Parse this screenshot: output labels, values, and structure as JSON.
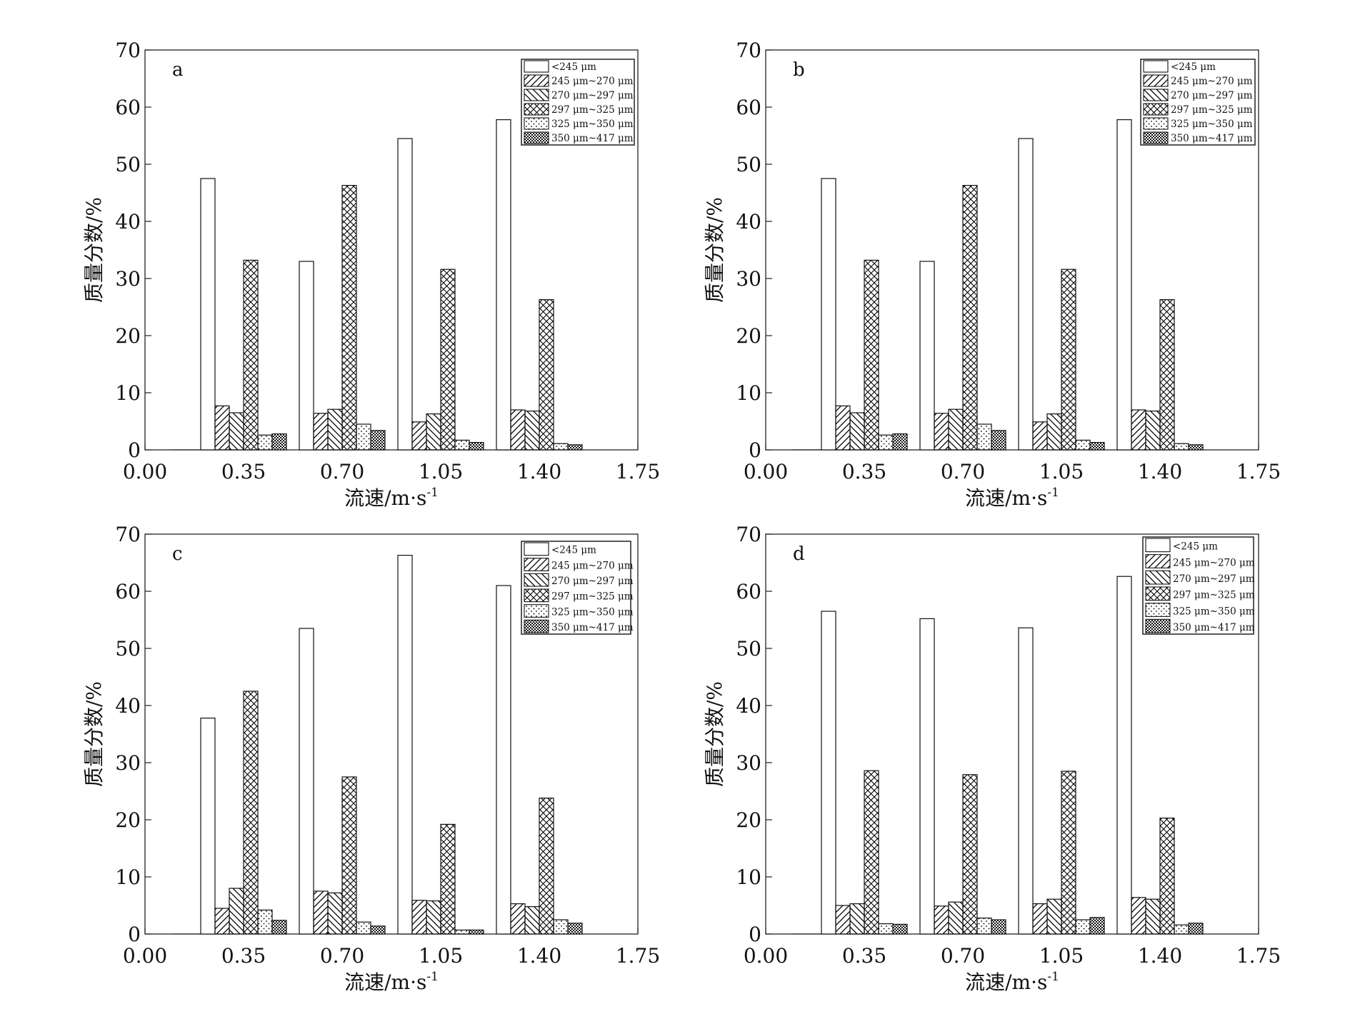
{
  "chart_data": [
    {
      "type": "bar",
      "panel_label": "a",
      "xlabel": "流速/m·s",
      "xlabel_sup": "-1",
      "ylabel": "质量分数/%",
      "xlim": [
        0,
        1.75
      ],
      "ylim": [
        0,
        70
      ],
      "xticks": [
        "0.00",
        "0.35",
        "0.70",
        "1.05",
        "1.40",
        "1.75"
      ],
      "yticks": [
        "0",
        "10",
        "20",
        "30",
        "40",
        "50",
        "60",
        "70"
      ],
      "categories": [
        "0.35",
        "0.70",
        "1.05",
        "1.40"
      ],
      "legend_position": "top-right",
      "series": [
        {
          "name": "<245 μm",
          "pattern": "blank",
          "values": [
            47.5,
            33.0,
            54.5,
            57.8
          ]
        },
        {
          "name": "245 μm~270 μm",
          "pattern": "hatch-forward",
          "values": [
            7.7,
            6.4,
            4.9,
            7.0
          ]
        },
        {
          "name": "270 μm~297 μm",
          "pattern": "hatch-back",
          "values": [
            6.5,
            7.1,
            6.3,
            6.8
          ]
        },
        {
          "name": "297 μm~325 μm",
          "pattern": "crosshatch",
          "values": [
            33.2,
            46.3,
            31.6,
            26.3
          ]
        },
        {
          "name": "325 μm~350 μm",
          "pattern": "dots",
          "values": [
            2.6,
            4.5,
            1.7,
            1.1
          ]
        },
        {
          "name": "350 μm~417 μm",
          "pattern": "dense-check",
          "values": [
            2.8,
            3.4,
            1.3,
            0.9
          ]
        }
      ]
    },
    {
      "type": "bar",
      "panel_label": "b",
      "xlabel": "流速/m·s",
      "xlabel_sup": "-1",
      "ylabel": "质量分数/%",
      "xlim": [
        0,
        1.75
      ],
      "ylim": [
        0,
        70
      ],
      "xticks": [
        "0.00",
        "0.35",
        "0.70",
        "1.05",
        "1.40",
        "1.75"
      ],
      "yticks": [
        "0",
        "10",
        "20",
        "30",
        "40",
        "50",
        "60",
        "70"
      ],
      "categories": [
        "0.35",
        "0.70",
        "1.05",
        "1.40"
      ],
      "legend_position": "top-right",
      "series": [
        {
          "name": "<245 μm",
          "pattern": "blank",
          "values": [
            47.5,
            33.0,
            54.5,
            57.8
          ]
        },
        {
          "name": "245 μm~270 μm",
          "pattern": "hatch-forward",
          "values": [
            7.7,
            6.4,
            4.9,
            7.0
          ]
        },
        {
          "name": "270 μm~297 μm",
          "pattern": "hatch-back",
          "values": [
            6.5,
            7.1,
            6.3,
            6.8
          ]
        },
        {
          "name": "297 μm~325 μm",
          "pattern": "crosshatch",
          "values": [
            33.2,
            46.3,
            31.6,
            26.3
          ]
        },
        {
          "name": "325 μm~350 μm",
          "pattern": "dots",
          "values": [
            2.6,
            4.5,
            1.7,
            1.1
          ]
        },
        {
          "name": "350 μm~417 μm",
          "pattern": "dense-check",
          "values": [
            2.8,
            3.4,
            1.3,
            0.9
          ]
        }
      ]
    },
    {
      "type": "bar",
      "panel_label": "c",
      "xlabel": "流速/m·s",
      "xlabel_sup": "-1",
      "ylabel": "质量分数/%",
      "xlim": [
        0,
        1.75
      ],
      "ylim": [
        0,
        70
      ],
      "xticks": [
        "0.00",
        "0.35",
        "0.70",
        "1.05",
        "1.40",
        "1.75"
      ],
      "yticks": [
        "0",
        "10",
        "20",
        "30",
        "40",
        "50",
        "60",
        "70"
      ],
      "categories": [
        "0.35",
        "0.70",
        "1.05",
        "1.40"
      ],
      "legend_position": "top-right",
      "series": [
        {
          "name": "<245 μm",
          "pattern": "blank",
          "values": [
            37.8,
            53.5,
            66.3,
            61.0
          ]
        },
        {
          "name": "245 μm~270 μm",
          "pattern": "hatch-forward",
          "values": [
            4.5,
            7.5,
            5.9,
            5.3
          ]
        },
        {
          "name": "270 μm~297 μm",
          "pattern": "hatch-back",
          "values": [
            8.0,
            7.2,
            5.8,
            4.8
          ]
        },
        {
          "name": "297 μm~325 μm",
          "pattern": "crosshatch",
          "values": [
            42.5,
            27.5,
            19.2,
            23.8
          ]
        },
        {
          "name": "325 μm~350 μm",
          "pattern": "dots",
          "values": [
            4.2,
            2.1,
            0.7,
            2.5
          ]
        },
        {
          "name": "350 μm~417 μm",
          "pattern": "dense-check",
          "values": [
            2.4,
            1.4,
            0.7,
            1.9
          ]
        }
      ]
    },
    {
      "type": "bar",
      "panel_label": "d",
      "xlabel": "流速/m·s",
      "xlabel_sup": "-1",
      "ylabel": "质量分数/%",
      "xlim": [
        0,
        1.75
      ],
      "ylim": [
        0,
        70
      ],
      "xticks": [
        "0.00",
        "0.35",
        "0.70",
        "1.05",
        "1.40",
        "1.75"
      ],
      "yticks": [
        "0",
        "10",
        "20",
        "30",
        "40",
        "50",
        "60",
        "70"
      ],
      "categories": [
        "0.35",
        "0.70",
        "1.05",
        "1.40"
      ],
      "legend_position": "top-right",
      "series": [
        {
          "name": "<245 μm",
          "pattern": "blank",
          "values": [
            56.5,
            55.2,
            53.6,
            62.6
          ]
        },
        {
          "name": "245 μm~270 μm",
          "pattern": "hatch-forward",
          "values": [
            5.0,
            4.9,
            5.3,
            6.4
          ]
        },
        {
          "name": "270 μm~297 μm",
          "pattern": "hatch-back",
          "values": [
            5.3,
            5.6,
            6.1,
            6.1
          ]
        },
        {
          "name": "297 μm~325 μm",
          "pattern": "crosshatch",
          "values": [
            28.6,
            27.9,
            28.5,
            20.3
          ]
        },
        {
          "name": "325 μm~350 μm",
          "pattern": "dots",
          "values": [
            1.8,
            2.8,
            2.5,
            1.6
          ]
        },
        {
          "name": "350 μm~417 μm",
          "pattern": "dense-check",
          "values": [
            1.7,
            2.5,
            2.9,
            1.9
          ]
        }
      ]
    }
  ]
}
